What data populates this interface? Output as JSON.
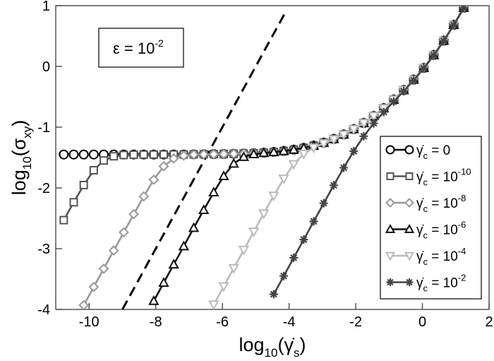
{
  "chart_data": {
    "type": "line",
    "title": "",
    "xlabel": {
      "prefix": "log",
      "sub": "10",
      "open": "(",
      "symbol": "γ̇",
      "symbol_sub": "s",
      "close": ")"
    },
    "ylabel": {
      "prefix": "log",
      "sub": "10",
      "open": "(",
      "symbol": "σ",
      "symbol_sub": "xy",
      "close": ")"
    },
    "xlim": [
      -11,
      2
    ],
    "ylim": [
      -4,
      1
    ],
    "xticks": [
      -10,
      -8,
      -6,
      -4,
      -2,
      0,
      2
    ],
    "yticks": [
      1,
      0,
      -1,
      -2,
      -3,
      -4
    ],
    "grid": false,
    "legend_position": "right",
    "annotation": {
      "symbol": "ε",
      "eq": " = 10",
      "exp": "-2"
    },
    "reference_line": {
      "style": "dashed",
      "color": "#000000",
      "x": [
        -9.0,
        -4.1
      ],
      "y": [
        -4.0,
        0.9
      ]
    },
    "series": [
      {
        "name": "γ̇c = 0",
        "legend": {
          "symbol": "γ̇",
          "sub": "c",
          "eq": " = 0",
          "exp": ""
        },
        "marker": "circle",
        "color": "#000000",
        "x": [
          -10.76,
          -10.46,
          -10.16,
          -9.86,
          -9.56,
          -9.26,
          -8.96,
          -8.66,
          -8.36,
          -8.06,
          -7.76,
          -7.46,
          -7.16,
          -6.86,
          -6.56,
          -6.26,
          -5.96,
          -5.66,
          -5.36,
          -5.06,
          -4.76,
          -4.46,
          -4.16,
          -3.86,
          -3.56,
          -3.26,
          -2.96,
          -2.66,
          -2.36,
          -2.06,
          -1.76,
          -1.46,
          -1.16,
          -0.86,
          -0.56,
          -0.26,
          0.04,
          0.34,
          0.64,
          0.94,
          1.24
        ],
        "y": [
          -1.45,
          -1.45,
          -1.45,
          -1.45,
          -1.45,
          -1.45,
          -1.45,
          -1.45,
          -1.45,
          -1.45,
          -1.45,
          -1.45,
          -1.45,
          -1.447,
          -1.446,
          -1.444,
          -1.442,
          -1.439,
          -1.435,
          -1.429,
          -1.42,
          -1.409,
          -1.393,
          -1.371,
          -1.342,
          -1.304,
          -1.256,
          -1.195,
          -1.121,
          -1.033,
          -0.932,
          -0.817,
          -0.688,
          -0.547,
          -0.39,
          -0.218,
          -0.026,
          0.187,
          0.423,
          0.683,
          0.964
        ]
      },
      {
        "name": "γ̇c = 10^-10",
        "legend": {
          "symbol": "γ̇",
          "sub": "c",
          "eq": " = 10",
          "exp": "-10"
        },
        "marker": "square",
        "color": "#555555",
        "x": [
          -10.76,
          -10.46,
          -10.16,
          -9.86,
          -9.56,
          -9.26,
          -8.96,
          -8.66,
          -8.36,
          -8.06,
          -7.76,
          -7.46,
          -7.16,
          -6.86,
          -6.56,
          -6.26,
          -5.96,
          -5.66,
          -5.36,
          -5.06,
          -4.76,
          -4.46,
          -4.16,
          -3.86,
          -3.56,
          -3.26,
          -2.96,
          -2.66,
          -2.36,
          -2.06,
          -1.76,
          -1.46,
          -1.16,
          -0.86,
          -0.56,
          -0.26,
          0.04,
          0.34,
          0.64,
          0.94,
          1.24
        ],
        "y": [
          -2.53,
          -2.236,
          -1.953,
          -1.709,
          -1.549,
          -1.479,
          -1.458,
          -1.454,
          -1.452,
          -1.451,
          -1.45,
          -1.45,
          -1.45,
          -1.447,
          -1.446,
          -1.444,
          -1.442,
          -1.439,
          -1.435,
          -1.429,
          -1.42,
          -1.409,
          -1.393,
          -1.371,
          -1.342,
          -1.304,
          -1.256,
          -1.195,
          -1.121,
          -1.033,
          -0.932,
          -0.817,
          -0.688,
          -0.547,
          -0.39,
          -0.218,
          -0.026,
          0.187,
          0.423,
          0.683,
          0.964
        ]
      },
      {
        "name": "γ̇c = 10^-8",
        "legend": {
          "symbol": "γ̇",
          "sub": "c",
          "eq": " = 10",
          "exp": "-8"
        },
        "marker": "diamond",
        "color": "#999999",
        "x": [
          -10.16,
          -9.86,
          -9.56,
          -9.26,
          -8.96,
          -8.66,
          -8.36,
          -8.06,
          -7.76,
          -7.46,
          -7.16,
          -6.86,
          -6.56,
          -6.26,
          -5.96,
          -5.66,
          -5.36,
          -5.06,
          -4.76,
          -4.46,
          -4.16,
          -3.86,
          -3.56,
          -3.26,
          -2.96,
          -2.66,
          -2.36,
          -2.06,
          -1.76,
          -1.46,
          -1.16,
          -0.86,
          -0.56,
          -0.26,
          0.04,
          0.34,
          0.64,
          0.94,
          1.24
        ],
        "y": [
          -3.93,
          -3.63,
          -3.33,
          -3.03,
          -2.73,
          -2.432,
          -2.139,
          -1.865,
          -1.644,
          -1.516,
          -1.468,
          -1.452,
          -1.448,
          -1.445,
          -1.442,
          -1.439,
          -1.435,
          -1.429,
          -1.42,
          -1.409,
          -1.393,
          -1.371,
          -1.342,
          -1.304,
          -1.256,
          -1.195,
          -1.121,
          -1.033,
          -0.932,
          -0.817,
          -0.688,
          -0.547,
          -0.39,
          -0.218,
          -0.026,
          0.187,
          0.423,
          0.683,
          0.964
        ]
      },
      {
        "name": "γ̇c = 10^-6",
        "legend": {
          "symbol": "γ̇",
          "sub": "c",
          "eq": " = 10",
          "exp": "-6"
        },
        "marker": "triangle-up",
        "color": "#111111",
        "x": [
          -8.06,
          -7.76,
          -7.46,
          -7.16,
          -6.86,
          -6.56,
          -6.26,
          -5.96,
          -5.66,
          -5.36,
          -5.06,
          -4.76,
          -4.46,
          -4.16,
          -3.86,
          -3.56,
          -3.26,
          -2.96,
          -2.66,
          -2.36,
          -2.06,
          -1.76,
          -1.46,
          -1.16,
          -0.86,
          -0.56,
          -0.26,
          0.04,
          0.34,
          0.64,
          0.94,
          1.24
        ],
        "y": [
          -3.86,
          -3.56,
          -3.26,
          -2.96,
          -2.658,
          -2.363,
          -2.072,
          -1.805,
          -1.6,
          -1.489,
          -1.444,
          -1.424,
          -1.41,
          -1.393,
          -1.371,
          -1.342,
          -1.304,
          -1.256,
          -1.195,
          -1.121,
          -1.033,
          -0.932,
          -0.817,
          -0.688,
          -0.547,
          -0.39,
          -0.218,
          -0.026,
          0.187,
          0.423,
          0.683,
          0.964
        ]
      },
      {
        "name": "γ̇c = 10^-4",
        "legend": {
          "symbol": "γ̇",
          "sub": "c",
          "eq": " = 10",
          "exp": "-4"
        },
        "marker": "triangle-down",
        "color": "#bbbbbb",
        "x": [
          -6.26,
          -5.96,
          -5.66,
          -5.36,
          -5.06,
          -4.76,
          -4.46,
          -4.16,
          -3.86,
          -3.56,
          -3.26,
          -2.96,
          -2.66,
          -2.36,
          -2.06,
          -1.76,
          -1.46,
          -1.16,
          -0.86,
          -0.56,
          -0.26,
          0.04,
          0.34,
          0.64,
          0.94,
          1.24
        ],
        "y": [
          -3.92,
          -3.62,
          -3.32,
          -3.02,
          -2.72,
          -2.422,
          -2.128,
          -1.848,
          -1.609,
          -1.44,
          -1.338,
          -1.267,
          -1.199,
          -1.122,
          -1.033,
          -0.932,
          -0.817,
          -0.688,
          -0.547,
          -0.39,
          -0.218,
          -0.026,
          0.187,
          0.423,
          0.683,
          0.964
        ]
      },
      {
        "name": "γ̇c = 10^-2",
        "legend": {
          "symbol": "γ̇",
          "sub": "c",
          "eq": " = 10",
          "exp": "-2"
        },
        "marker": "asterisk",
        "color": "#444444",
        "x": [
          -4.46,
          -4.16,
          -3.86,
          -3.56,
          -3.26,
          -2.96,
          -2.66,
          -2.36,
          -2.06,
          -1.76,
          -1.46,
          -1.16,
          -0.86,
          -0.56,
          -0.26,
          0.04,
          0.34,
          0.64,
          0.94,
          1.24
        ],
        "y": [
          -3.75,
          -3.45,
          -3.15,
          -2.85,
          -2.551,
          -2.252,
          -1.957,
          -1.668,
          -1.395,
          -1.149,
          -0.937,
          -0.751,
          -0.579,
          -0.407,
          -0.228,
          -0.032,
          0.183,
          0.42,
          0.68,
          0.962
        ]
      }
    ]
  }
}
